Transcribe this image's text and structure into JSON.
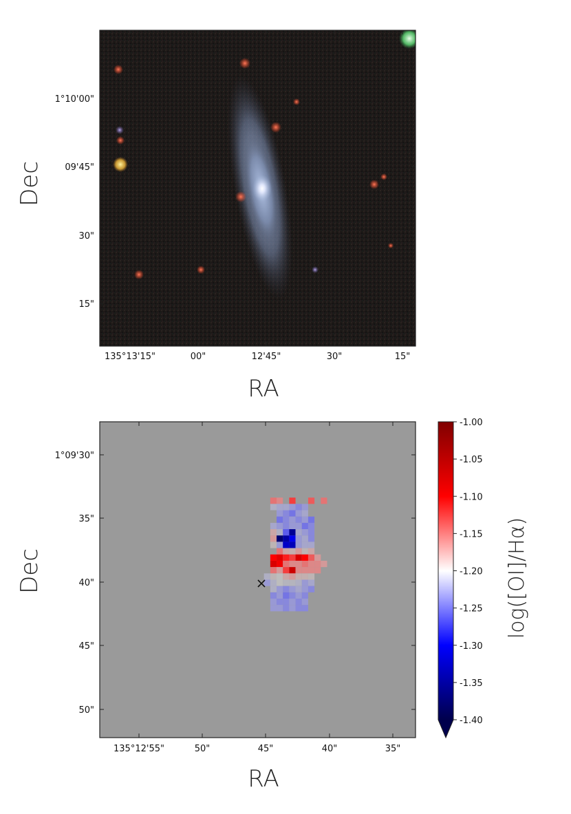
{
  "colors": {
    "sky_background": "#1c1816",
    "map_background": "#9a9a9a",
    "galaxy_core": "#f4f4ff",
    "galaxy_disk": "#9fb3d6"
  },
  "chart_data": [
    {
      "type": "image",
      "panel": "top",
      "xlabel": "RA",
      "ylabel": "Dec",
      "x_ticks": [
        "135°13'15\"",
        "00\"",
        "12'45\"",
        "30\"",
        "15\""
      ],
      "y_ticks": [
        "1°10'00\"",
        "09'45\"",
        "30\"",
        "15\""
      ]
    },
    {
      "type": "heatmap",
      "panel": "bottom",
      "xlabel": "RA",
      "ylabel": "Dec",
      "x_ticks": [
        "135°12'55\"",
        "50\"",
        "45\"",
        "40\"",
        "35\""
      ],
      "y_ticks": [
        "1°09'30\"",
        "35\"",
        "40\"",
        "45\"",
        "50\""
      ],
      "colorbar": {
        "label": "log([OI]/Hα)",
        "range": [
          -1.4,
          -1.0
        ],
        "extend": "min",
        "ticks": [
          "-1.00",
          "-1.05",
          "-1.10",
          "-1.15",
          "-1.20",
          "-1.25",
          "-1.30",
          "-1.35",
          "-1.40"
        ],
        "colormap": "seismic"
      },
      "grid": {
        "columns": 25,
        "rows": 25,
        "ra_center_arcsec": 45,
        "dec_center_arcsec": 40,
        "spaxel_arcsec": 0.5
      },
      "center_marker": {
        "symbol": "x",
        "ra_arcsec": 45.0,
        "dec_arcsec": 40.3
      },
      "spaxels": [
        {
          "row": 7,
          "cols": [
            [
              10,
              -1.14
            ],
            [
              11,
              -1.15
            ],
            [
              13,
              -1.12
            ],
            [
              16,
              -1.13
            ],
            [
              18,
              -1.14
            ]
          ]
        },
        {
          "row": 8,
          "cols": [
            [
              10,
              -1.22
            ],
            [
              11,
              -1.23
            ],
            [
              12,
              -1.23
            ],
            [
              13,
              -1.24
            ],
            [
              14,
              -1.25
            ],
            [
              15,
              -1.24
            ]
          ]
        },
        {
          "row": 9,
          "cols": [
            [
              11,
              -1.24
            ],
            [
              12,
              -1.25
            ],
            [
              13,
              -1.26
            ],
            [
              14,
              -1.24
            ],
            [
              15,
              -1.23
            ]
          ]
        },
        {
          "row": 10,
          "cols": [
            [
              11,
              -1.26
            ],
            [
              12,
              -1.25
            ],
            [
              13,
              -1.24
            ],
            [
              14,
              -1.25
            ],
            [
              15,
              -1.24
            ],
            [
              16,
              -1.26
            ]
          ]
        },
        {
          "row": 11,
          "cols": [
            [
              10,
              -1.23
            ],
            [
              11,
              -1.24
            ],
            [
              12,
              -1.25
            ],
            [
              13,
              -1.24
            ],
            [
              14,
              -1.24
            ],
            [
              15,
              -1.26
            ],
            [
              16,
              -1.25
            ]
          ]
        },
        {
          "row": 12,
          "cols": [
            [
              10,
              -1.17
            ],
            [
              11,
              -1.22
            ],
            [
              12,
              -1.27
            ],
            [
              13,
              -1.36
            ],
            [
              14,
              -1.23
            ],
            [
              15,
              -1.24
            ],
            [
              16,
              -1.25
            ]
          ]
        },
        {
          "row": 13,
          "cols": [
            [
              10,
              -1.16
            ],
            [
              11,
              -1.38
            ],
            [
              12,
              -1.35
            ],
            [
              13,
              -1.31
            ],
            [
              14,
              -1.24
            ],
            [
              15,
              -1.23
            ],
            [
              16,
              -1.25
            ]
          ]
        },
        {
          "row": 14,
          "cols": [
            [
              10,
              -1.19
            ],
            [
              11,
              -1.24
            ],
            [
              12,
              -1.33
            ],
            [
              13,
              -1.34
            ],
            [
              14,
              -1.24
            ],
            [
              15,
              -1.23
            ],
            [
              16,
              -1.23
            ]
          ]
        },
        {
          "row": 15,
          "cols": [
            [
              11,
              -1.14
            ],
            [
              12,
              -1.17
            ],
            [
              13,
              -1.18
            ],
            [
              14,
              -1.16
            ],
            [
              15,
              -1.19
            ],
            [
              16,
              -1.17
            ]
          ]
        },
        {
          "row": 16,
          "cols": [
            [
              10,
              -1.1
            ],
            [
              11,
              -1.08
            ],
            [
              12,
              -1.11
            ],
            [
              13,
              -1.12
            ],
            [
              14,
              -1.07
            ],
            [
              15,
              -1.1
            ],
            [
              16,
              -1.13
            ],
            [
              17,
              -1.16
            ]
          ]
        },
        {
          "row": 17,
          "cols": [
            [
              10,
              -1.07
            ],
            [
              11,
              -1.09
            ],
            [
              12,
              -1.14
            ],
            [
              13,
              -1.15
            ],
            [
              14,
              -1.15
            ],
            [
              15,
              -1.14
            ],
            [
              16,
              -1.15
            ],
            [
              17,
              -1.15
            ],
            [
              18,
              -1.16
            ]
          ]
        },
        {
          "row": 18,
          "cols": [
            [
              10,
              -1.14
            ],
            [
              11,
              -1.16
            ],
            [
              12,
              -1.12
            ],
            [
              13,
              -1.06
            ],
            [
              14,
              -1.15
            ],
            [
              15,
              -1.15
            ],
            [
              16,
              -1.15
            ],
            [
              17,
              -1.15
            ]
          ]
        },
        {
          "row": 19,
          "cols": [
            [
              9,
              -1.22
            ],
            [
              10,
              -1.19
            ],
            [
              11,
              -1.2
            ],
            [
              12,
              -1.17
            ],
            [
              13,
              -1.16
            ],
            [
              14,
              -1.18
            ],
            [
              15,
              -1.18
            ],
            [
              16,
              -1.19
            ]
          ]
        },
        {
          "row": 20,
          "cols": [
            [
              9,
              -1.24
            ],
            [
              10,
              -1.22
            ],
            [
              11,
              -1.2
            ],
            [
              12,
              -1.21
            ],
            [
              13,
              -1.21
            ],
            [
              14,
              -1.22
            ],
            [
              15,
              -1.24
            ],
            [
              16,
              -1.23
            ]
          ]
        },
        {
          "row": 21,
          "cols": [
            [
              10,
              -1.22
            ],
            [
              11,
              -1.24
            ],
            [
              12,
              -1.25
            ],
            [
              13,
              -1.24
            ],
            [
              14,
              -1.23
            ],
            [
              15,
              -1.24
            ],
            [
              16,
              -1.25
            ]
          ]
        },
        {
          "row": 22,
          "cols": [
            [
              10,
              -1.25
            ],
            [
              11,
              -1.24
            ],
            [
              12,
              -1.26
            ],
            [
              13,
              -1.25
            ],
            [
              14,
              -1.24
            ],
            [
              15,
              -1.25
            ]
          ]
        },
        {
          "row": 23,
          "cols": [
            [
              10,
              -1.24
            ],
            [
              11,
              -1.25
            ],
            [
              12,
              -1.25
            ],
            [
              13,
              -1.24
            ],
            [
              14,
              -1.25
            ],
            [
              15,
              -1.24
            ]
          ]
        },
        {
          "row": 24,
          "cols": [
            [
              10,
              -1.24
            ],
            [
              11,
              -1.24
            ],
            [
              12,
              -1.25
            ],
            [
              13,
              -1.24
            ],
            [
              14,
              -1.25
            ],
            [
              15,
              -1.25
            ]
          ]
        }
      ]
    }
  ]
}
